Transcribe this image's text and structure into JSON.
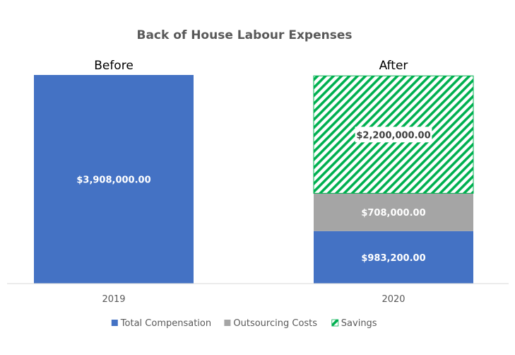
{
  "chart_data": {
    "type": "bar",
    "stacked": true,
    "title": "Back of House Labour Expenses",
    "categories": [
      "2019",
      "2020"
    ],
    "panel_labels": [
      "Before",
      "After"
    ],
    "series": [
      {
        "name": "Total Compensation",
        "values": [
          3908000,
          983200
        ],
        "labels": [
          "$3,908,000.00",
          "$983,200.00"
        ],
        "color": "#4472C4",
        "pattern": "solid"
      },
      {
        "name": "Outsourcing Costs",
        "values": [
          0,
          708000
        ],
        "labels": [
          "",
          "$708,000.00"
        ],
        "color": "#A5A5A5",
        "pattern": "solid"
      },
      {
        "name": "Savings",
        "values": [
          0,
          2200000
        ],
        "labels": [
          "",
          "$2,200,000.00"
        ],
        "color": "#00B050",
        "pattern": "diagonal-stripes"
      }
    ],
    "ylim": [
      0,
      3908000
    ],
    "grid": false,
    "legend_position": "bottom"
  }
}
